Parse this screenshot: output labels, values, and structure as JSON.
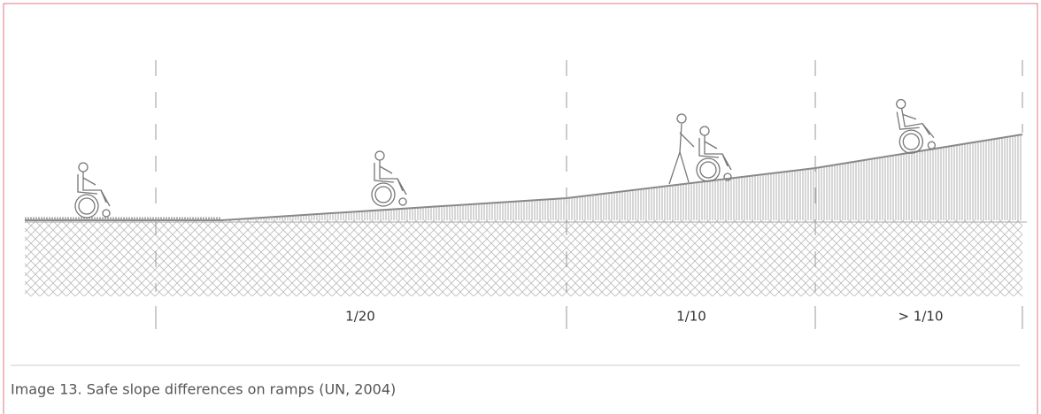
{
  "sections": [
    {
      "label": "1/20"
    },
    {
      "label": "1/10"
    },
    {
      "label": "> 1/10"
    }
  ],
  "caption": "Image 13. Safe slope differences on ramps (UN, 2004)"
}
